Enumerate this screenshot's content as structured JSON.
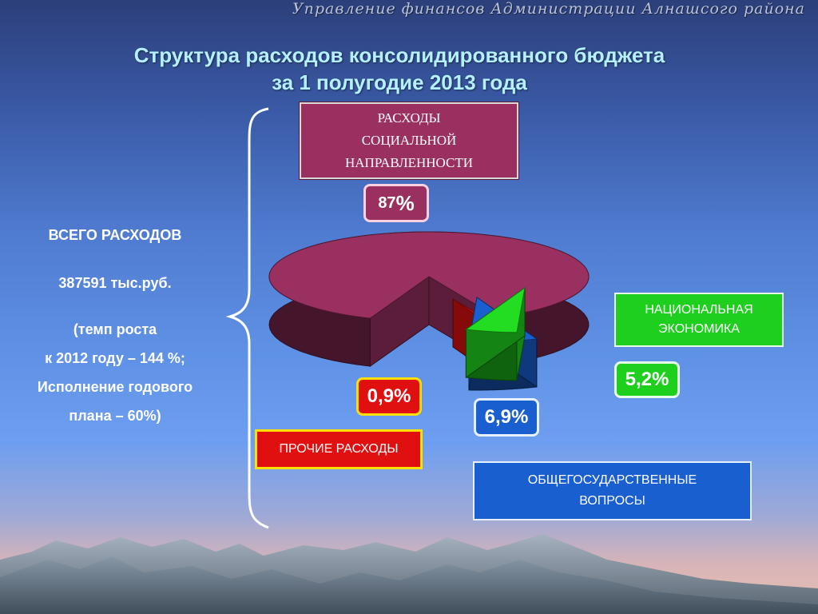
{
  "header": "Управление финансов  Администрации Алнашсого района",
  "title_line1": "Структура расходов консолидированного бюджета",
  "title_line2": "за 1 полугодие  2013 года",
  "summary": {
    "total_label": "ВСЕГО РАСХОДОВ",
    "total_value": "387591 тыс.руб.",
    "growth_line1": "(темп роста",
    "growth_line2": "к  2012 году – 144 %;",
    "plan_line1": "Исполнение годового",
    "plan_line2": "плана – 60%)"
  },
  "chart_data": {
    "type": "pie",
    "title": "Структура расходов консолидированного бюджета за 1 полугодие  2013 года",
    "slices": [
      {
        "name": "РАСХОДЫ СОЦИАЛЬНОЙ НАПРАВЛЕННОСТИ",
        "value": 87,
        "label": "87%",
        "color": "#9a3060"
      },
      {
        "name": "ПРОЧИЕ РАСХОДЫ",
        "value": 0.9,
        "label": "0,9%",
        "color": "#e01010"
      },
      {
        "name": "ОБЩЕГОСУДАРСТВЕННЫЕ ВОПРОСЫ",
        "value": 6.9,
        "label": "6,9%",
        "color": "#1a5fd0"
      },
      {
        "name": "НАЦИОНАЛЬНАЯ ЭКОНОМИКА",
        "value": 5.2,
        "label": "5,2%",
        "color": "#22dd22"
      }
    ]
  },
  "labels": {
    "social_line1": "РАСХОДЫ",
    "social_line2": "СОЦИАЛЬНОЙ",
    "social_line3": "НАПРАВЛЕННОСТИ",
    "economy_line1": "НАЦИОНАЛЬНАЯ",
    "economy_line2": "ЭКОНОМИКА",
    "other": "ПРОЧИЕ РАСХОДЫ",
    "general_line1": "ОБЩЕГОСУДАРСТВЕННЫЕ",
    "general_line2": "ВОПРОСЫ",
    "pct_social_num": "87",
    "pct_social_sign": "%",
    "pct_other": "0,9%",
    "pct_general": "6,9%",
    "pct_economy": "5,2%"
  }
}
